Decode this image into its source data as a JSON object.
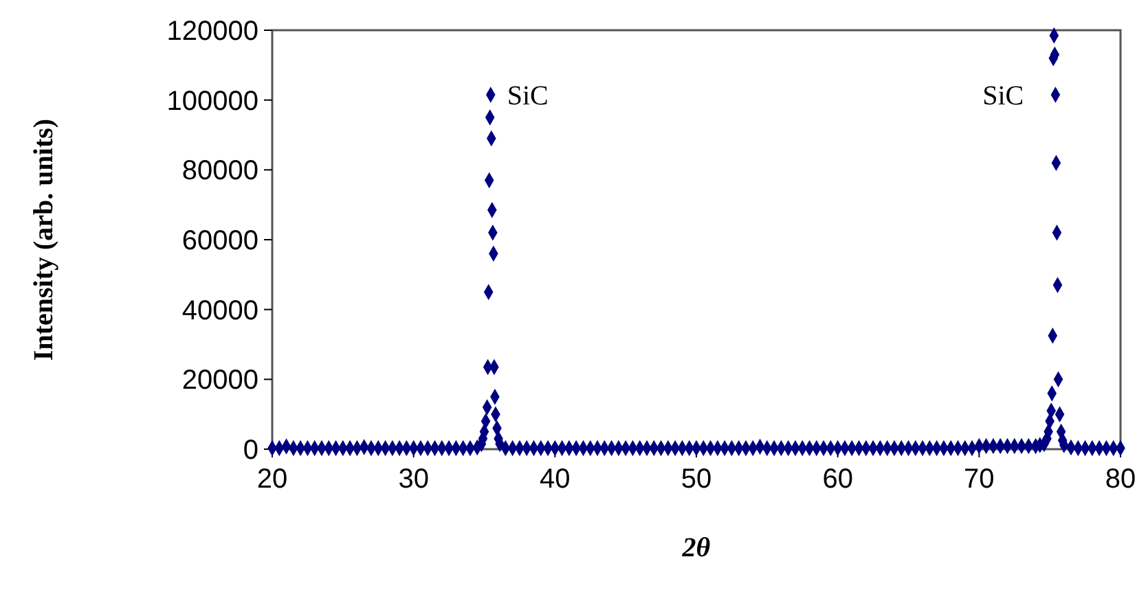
{
  "chart_data": {
    "type": "scatter",
    "xlabel": "2θ",
    "ylabel": "Intensity (arb. units)",
    "xlim": [
      20,
      80
    ],
    "xticks": [
      20,
      30,
      40,
      50,
      60,
      70,
      80
    ],
    "ylim": [
      0,
      120000
    ],
    "yticks": [
      0,
      20000,
      40000,
      60000,
      80000,
      100000,
      120000
    ],
    "marker": "diamond",
    "grid": false,
    "annotations": [
      {
        "text": "SiC",
        "x": 35.45,
        "y": 101500
      },
      {
        "text": "SiC",
        "x": 75.3,
        "y": 101500
      }
    ],
    "series": [
      {
        "color": "#000080",
        "x": [
          20,
          20.5,
          21,
          21.5,
          22,
          22.5,
          23,
          23.5,
          24,
          24.5,
          25,
          25.5,
          26,
          26.5,
          27,
          27.5,
          28,
          28.5,
          29,
          29.5,
          30,
          30.5,
          31,
          31.5,
          32,
          32.5,
          33,
          33.5,
          34,
          34.5,
          34.8,
          34.9,
          35,
          35.1,
          35.2,
          35.25,
          35.3,
          35.35,
          35.4,
          35.45,
          35.5,
          35.55,
          35.6,
          35.65,
          35.7,
          35.75,
          35.8,
          35.9,
          36,
          36.1,
          36.5,
          37,
          37.5,
          38,
          38.5,
          39,
          39.5,
          40,
          40.5,
          41,
          41.5,
          42,
          42.5,
          43,
          43.5,
          44,
          44.5,
          45,
          45.5,
          46,
          46.5,
          47,
          47.5,
          48,
          48.5,
          49,
          49.5,
          50,
          50.5,
          51,
          51.5,
          52,
          52.5,
          53,
          53.5,
          54,
          54.5,
          55,
          55.5,
          56,
          56.5,
          57,
          57.5,
          58,
          58.5,
          59,
          59.5,
          60,
          60.5,
          61,
          61.5,
          62,
          62.5,
          63,
          63.5,
          64,
          64.5,
          65,
          65.5,
          66,
          66.5,
          67,
          67.5,
          68,
          68.5,
          69,
          69.5,
          70,
          70.5,
          71,
          71.5,
          72,
          72.5,
          73,
          73.5,
          74,
          74.3,
          74.6,
          74.8,
          74.9,
          75,
          75.1,
          75.15,
          75.2,
          75.25,
          75.3,
          75.35,
          75.4,
          75.45,
          75.5,
          75.55,
          75.6,
          75.7,
          75.8,
          75.9,
          76,
          76.5,
          77,
          77.5,
          78,
          78.5,
          79,
          79.5,
          80
        ],
        "values": [
          300,
          300,
          800,
          300,
          300,
          300,
          300,
          300,
          300,
          300,
          300,
          300,
          300,
          600,
          300,
          300,
          300,
          300,
          300,
          300,
          300,
          300,
          300,
          300,
          300,
          300,
          300,
          300,
          300,
          500,
          1500,
          3000,
          5000,
          8000,
          12000,
          23500,
          45000,
          77000,
          95000,
          101500,
          89000,
          68500,
          62000,
          56000,
          23500,
          15000,
          10000,
          6000,
          3000,
          1500,
          300,
          300,
          300,
          300,
          300,
          300,
          300,
          300,
          300,
          300,
          300,
          300,
          300,
          300,
          300,
          300,
          300,
          300,
          300,
          300,
          300,
          300,
          300,
          300,
          300,
          300,
          300,
          300,
          300,
          300,
          300,
          300,
          300,
          300,
          300,
          300,
          700,
          300,
          300,
          300,
          300,
          300,
          300,
          300,
          300,
          300,
          300,
          300,
          300,
          300,
          300,
          300,
          300,
          300,
          300,
          300,
          300,
          300,
          300,
          300,
          300,
          300,
          300,
          300,
          300,
          300,
          300,
          900,
          900,
          900,
          900,
          900,
          900,
          900,
          900,
          900,
          1200,
          1500,
          3000,
          5000,
          8000,
          11000,
          16000,
          32500,
          112000,
          118500,
          113000,
          101500,
          82000,
          62000,
          47000,
          20000,
          10000,
          5000,
          2500,
          1200,
          500,
          300,
          300,
          300,
          300,
          300,
          300,
          300
        ]
      }
    ]
  }
}
